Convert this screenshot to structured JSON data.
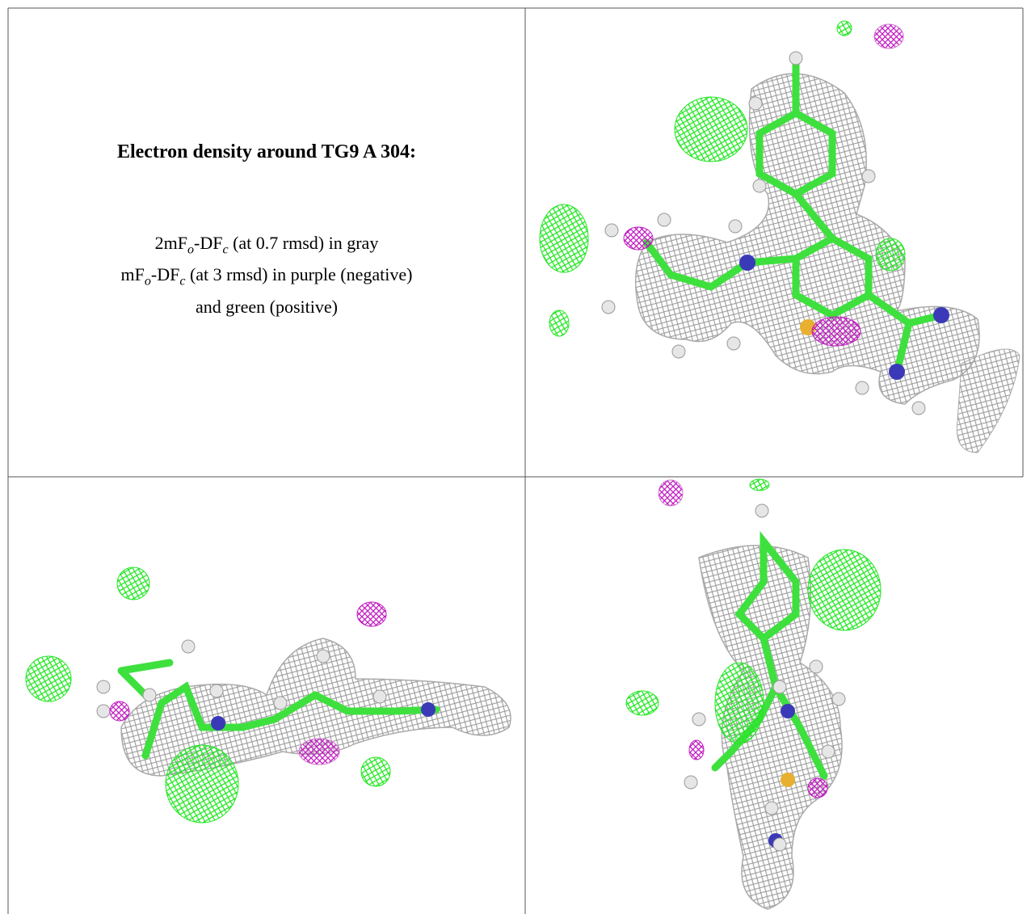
{
  "panel": {
    "title": "Electron density around TG9 A 304:",
    "lines": [
      [
        "2mF",
        "o",
        "-DF",
        "c",
        " (at 0.7 rmsd) in gray"
      ],
      [
        "mF",
        "o",
        "-DF",
        "c",
        " (at 3 rmsd) in purple (negative)"
      ],
      [
        "and green (positive)"
      ]
    ]
  }
}
